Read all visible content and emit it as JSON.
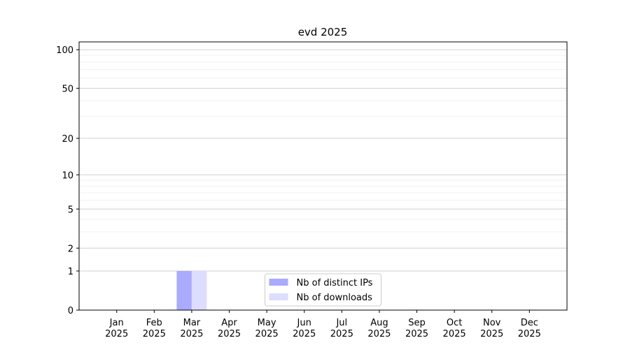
{
  "chart_data": {
    "type": "bar",
    "title": "evd 2025",
    "categories": [
      [
        "Jan",
        "2025"
      ],
      [
        "Feb",
        "2025"
      ],
      [
        "Mar",
        "2025"
      ],
      [
        "Apr",
        "2025"
      ],
      [
        "May",
        "2025"
      ],
      [
        "Jun",
        "2025"
      ],
      [
        "Jul",
        "2025"
      ],
      [
        "Aug",
        "2025"
      ],
      [
        "Sep",
        "2025"
      ],
      [
        "Oct",
        "2025"
      ],
      [
        "Nov",
        "2025"
      ],
      [
        "Dec",
        "2025"
      ]
    ],
    "series": [
      {
        "name": "Nb of distinct IPs",
        "color": "#aaaaff",
        "values": [
          0,
          0,
          1,
          0,
          0,
          0,
          0,
          0,
          0,
          0,
          0,
          0
        ]
      },
      {
        "name": "Nb of downloads",
        "color": "#ddddff",
        "values": [
          0,
          0,
          1,
          0,
          0,
          0,
          0,
          0,
          0,
          0,
          0,
          0
        ]
      }
    ],
    "yscale": "log1p",
    "ylim": [
      0,
      115
    ],
    "yticks": [
      0,
      1,
      2,
      5,
      10,
      20,
      50,
      100
    ],
    "yminorticks": [
      3,
      4,
      6,
      7,
      8,
      9,
      30,
      40,
      60,
      70,
      80,
      90
    ],
    "grid": true,
    "legend_loc": "lower center"
  }
}
